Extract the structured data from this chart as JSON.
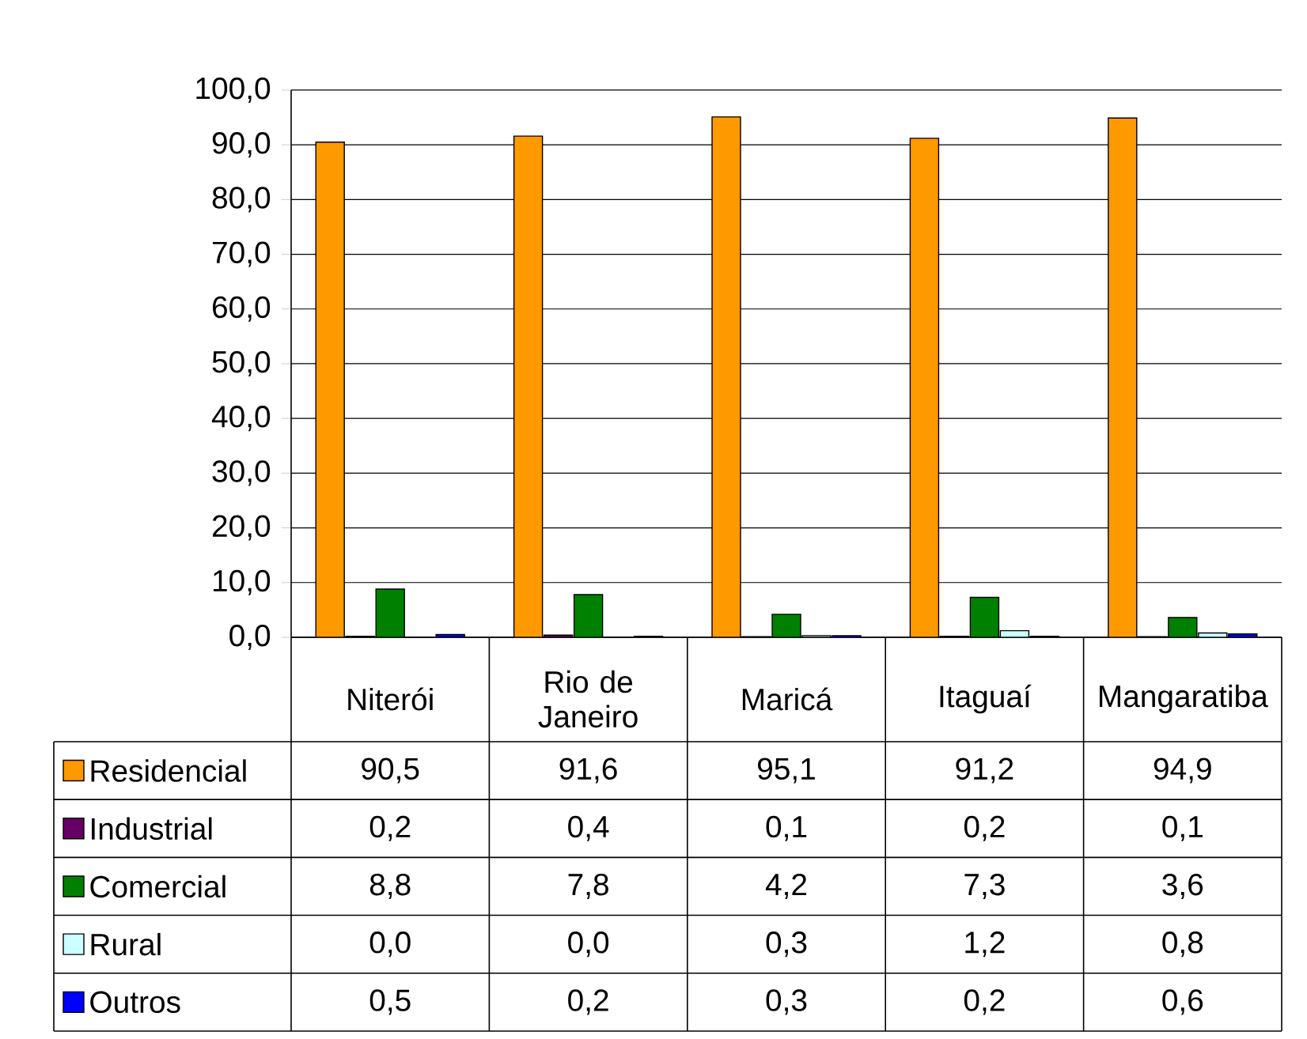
{
  "chart_data": {
    "type": "bar",
    "categories": [
      "Niterói",
      "Rio de Janeiro",
      "Maricá",
      "Itaguaí",
      "Mangaratiba"
    ],
    "series": [
      {
        "name": "Residencial",
        "color": "#ff9900",
        "values": [
          90.5,
          91.6,
          95.1,
          91.2,
          94.9
        ],
        "value_labels": [
          "90,5",
          "91,6",
          "95,1",
          "91,2",
          "94,9"
        ]
      },
      {
        "name": "Industrial",
        "color": "#660066",
        "values": [
          0.2,
          0.4,
          0.1,
          0.2,
          0.1
        ],
        "value_labels": [
          "0,2",
          "0,4",
          "0,1",
          "0,2",
          "0,1"
        ]
      },
      {
        "name": "Comercial",
        "color": "#008000",
        "values": [
          8.8,
          7.8,
          4.2,
          7.3,
          3.6
        ],
        "value_labels": [
          "8,8",
          "7,8",
          "4,2",
          "7,3",
          "3,6"
        ]
      },
      {
        "name": "Rural",
        "color": "#ccffff",
        "values": [
          0.0,
          0.0,
          0.3,
          1.2,
          0.8
        ],
        "value_labels": [
          "0,0",
          "0,0",
          "0,3",
          "1,2",
          "0,8"
        ]
      },
      {
        "name": "Outros",
        "color": "#0000ff",
        "values": [
          0.5,
          0.2,
          0.3,
          0.2,
          0.6
        ],
        "value_labels": [
          "0,5",
          "0,2",
          "0,3",
          "0,2",
          "0,6"
        ]
      }
    ],
    "ylim": [
      0,
      100
    ],
    "yticks": [
      {
        "value": 0,
        "label": "0,0"
      },
      {
        "value": 10,
        "label": "10,0"
      },
      {
        "value": 20,
        "label": "20,0"
      },
      {
        "value": 30,
        "label": "30,0"
      },
      {
        "value": 40,
        "label": "40,0"
      },
      {
        "value": 50,
        "label": "50,0"
      },
      {
        "value": 60,
        "label": "60,0"
      },
      {
        "value": 70,
        "label": "70,0"
      },
      {
        "value": 80,
        "label": "80,0"
      },
      {
        "value": 90,
        "label": "90,0"
      },
      {
        "value": 100,
        "label": "100,0"
      }
    ],
    "grid": "y",
    "legend": "bottom left"
  }
}
